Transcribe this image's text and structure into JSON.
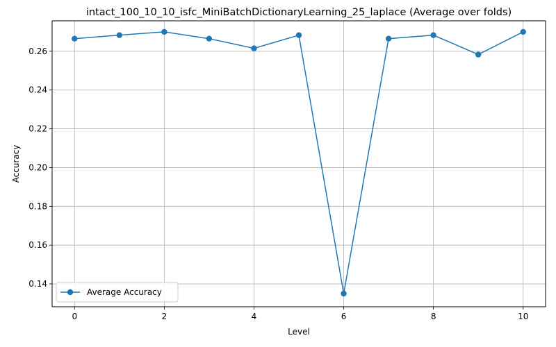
{
  "chart_data": {
    "type": "line",
    "title": "intact_100_10_10_isfc_MiniBatchDictionaryLearning_25_laplace (Average over folds)",
    "xlabel": "Level",
    "ylabel": "Accuracy",
    "xlim": [
      -0.5,
      10.5
    ],
    "ylim": [
      0.1282,
      0.2757
    ],
    "xticks": [
      0,
      2,
      4,
      6,
      8,
      10
    ],
    "yticks": [
      0.14,
      0.16,
      0.18,
      0.2,
      0.22,
      0.24,
      0.26
    ],
    "ytick_labels": [
      "0.14",
      "0.16",
      "0.18",
      "0.20",
      "0.22",
      "0.24",
      "0.26"
    ],
    "grid": true,
    "legend_position": "lower-left",
    "series": [
      {
        "name": "Average Accuracy",
        "color": "#1f77b4",
        "marker": "circle",
        "x": [
          0,
          1,
          2,
          3,
          4,
          5,
          6,
          7,
          8,
          9,
          10
        ],
        "y": [
          0.2665,
          0.2683,
          0.27,
          0.2665,
          0.2615,
          0.2683,
          0.135,
          0.2665,
          0.2683,
          0.2583,
          0.27
        ]
      }
    ]
  }
}
